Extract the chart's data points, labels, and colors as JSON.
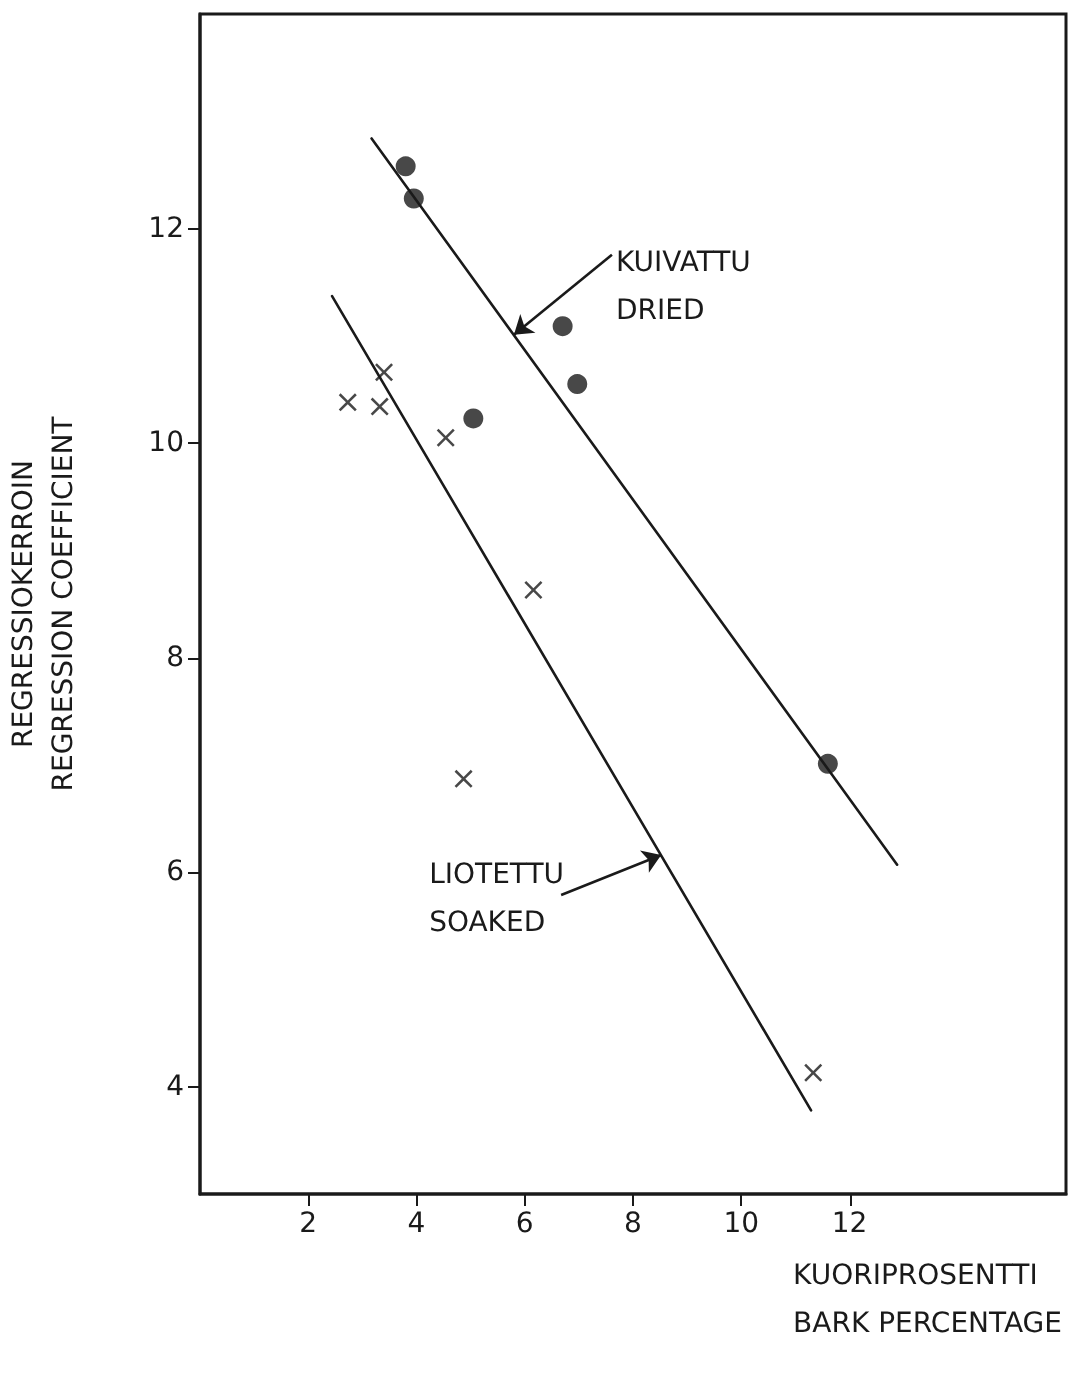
{
  "chart_data": {
    "type": "scatter",
    "xlabel": "KUORIPROSENTTI\nBARK PERCENTAGE",
    "ylabel": "REGRESSIOKERROIN\nREGRESSION COEFFICIENT",
    "xlim": [
      0,
      16
    ],
    "ylim": [
      3,
      14
    ],
    "xticks": [
      2,
      4,
      6,
      8,
      10,
      12
    ],
    "yticks": [
      4,
      6,
      8,
      10,
      12
    ],
    "grid": false,
    "series": [
      {
        "marker": "circle",
        "color": "#1a1a1a",
        "x": [
          3.8,
          3.95,
          6.7,
          6.97,
          5.05,
          11.6
        ],
        "values": [
          12.58,
          12.28,
          11.09,
          10.55,
          10.23,
          7.01
        ]
      },
      {
        "marker": "cross",
        "color": "#1a1a1a",
        "x": [
          2.73,
          3.32,
          3.4,
          4.54,
          6.16,
          4.87,
          11.33
        ],
        "values": [
          10.38,
          10.34,
          10.66,
          10.05,
          8.63,
          6.87,
          4.13
        ]
      },
      {
        "type": "line",
        "marker": "none",
        "line_style": "solid",
        "color": "#1a1a1a",
        "x": [
          3.17,
          12.88
        ],
        "values": [
          12.84,
          6.07
        ]
      },
      {
        "type": "line",
        "marker": "none",
        "line_style": "solid",
        "color": "#1a1a1a",
        "x": [
          2.44,
          11.29
        ],
        "values": [
          11.37,
          3.78
        ]
      }
    ],
    "annotations": [
      {
        "text": "KUIVATTU\nDRIED",
        "x": 5.8,
        "y": 11.01
      },
      {
        "text": "LIOTETTU\nSOAKED",
        "x": 8.52,
        "y": 6.16
      }
    ]
  }
}
